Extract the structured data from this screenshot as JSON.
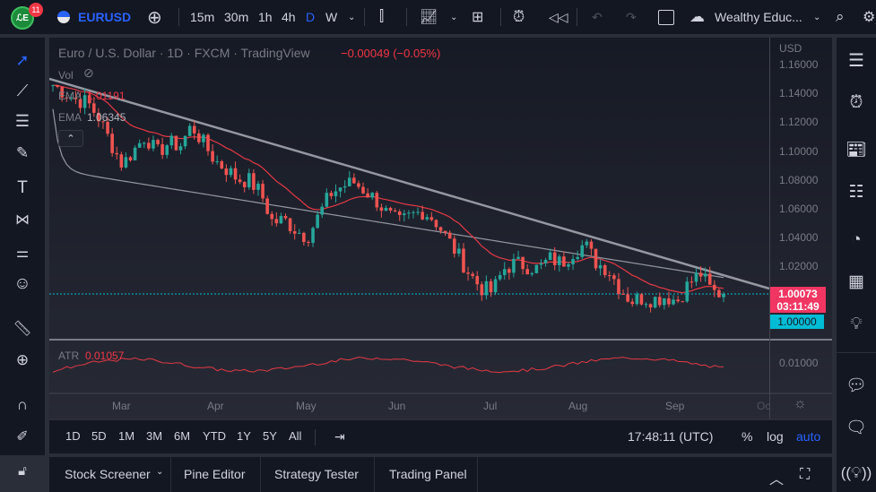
{
  "topbar": {
    "badge": "11",
    "symbol": "EURUSD",
    "intervals": [
      "15m",
      "30m",
      "1h",
      "4h",
      "D",
      "W"
    ],
    "active_interval": "D",
    "account": "Wealthy Educ..."
  },
  "legend": {
    "title": "Euro / U.S. Dollar · 1D · FXCM · TradingView",
    "change": "−0.00049 (−0.05%)",
    "vol": "Vol",
    "ema1_label": "EMA",
    "ema1_value": "1.01191",
    "ema2_label": "EMA",
    "ema2_value": "1.06345"
  },
  "price_axis": {
    "currency": "USD",
    "ticks": [
      "1.16000",
      "1.14000",
      "1.12000",
      "1.10000",
      "1.08000",
      "1.06000",
      "1.04000",
      "1.02000"
    ],
    "last_price": "1.00073",
    "countdown": "03:11:49",
    "level": "1.00000"
  },
  "atr": {
    "label": "ATR",
    "value": "0.01057",
    "tick": "0.01000"
  },
  "time_axis": {
    "months": [
      "Mar",
      "Apr",
      "May",
      "Jun",
      "Jul",
      "Aug",
      "Sep",
      "Oc"
    ]
  },
  "timeframe_bar": {
    "ranges": [
      "1D",
      "5D",
      "1M",
      "3M",
      "6M",
      "YTD",
      "1Y",
      "5Y",
      "All"
    ],
    "clock": "17:48:11 (UTC)",
    "percent": "%",
    "log": "log",
    "auto": "auto"
  },
  "bottom_tabs": [
    "Stock Screener",
    "Pine Editor",
    "Strategy Tester",
    "Trading Panel"
  ],
  "colors": {
    "up": "#26a69a",
    "down": "#ef5350",
    "accent": "#2962ff",
    "price_label": "#f23663",
    "level_label": "#00bcd4",
    "ema_fast": "#e53945",
    "ema_slow": "#9598a1"
  },
  "chart_data": {
    "type": "candlestick",
    "ylim": [
      0.99,
      1.165
    ],
    "weekly_closes": [
      1.145,
      1.14,
      1.135,
      1.133,
      1.122,
      1.105,
      1.09,
      1.1,
      1.11,
      1.098,
      1.105,
      1.103,
      1.117,
      1.105,
      1.093,
      1.087,
      1.08,
      1.079,
      1.07,
      1.05,
      1.052,
      1.045,
      1.04,
      1.055,
      1.07,
      1.075,
      1.078,
      1.072,
      1.065,
      1.055,
      1.05,
      1.055,
      1.058,
      1.052,
      1.04,
      1.028,
      1.015,
      1.005,
      1.002,
      1.018,
      1.022,
      1.02,
      1.018,
      1.025,
      1.022,
      1.03,
      1.035,
      1.022,
      1.018,
      1.005,
      0.996,
      0.998,
      0.997,
      0.999,
      0.996,
      1.008,
      1.015,
      1.002,
      1.0007
    ]
  }
}
